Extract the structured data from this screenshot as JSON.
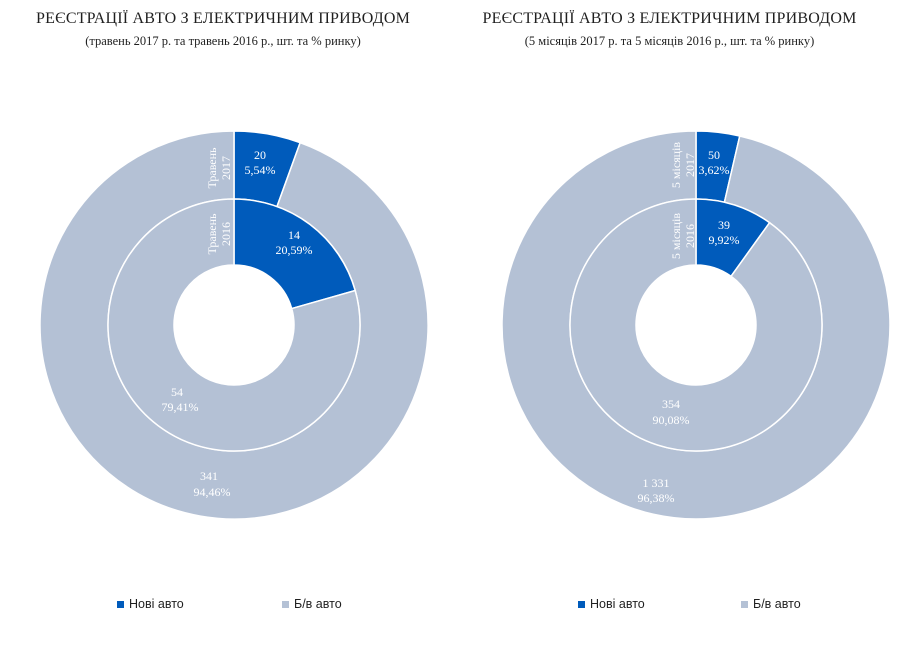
{
  "colors": {
    "new": "#005bbb",
    "used": "#b4c1d5",
    "background": "#ffffff"
  },
  "legend": {
    "new_label": "Нові авто",
    "used_label": "Б/в авто"
  },
  "chart_data": [
    {
      "type": "doughnut",
      "title": "РЕЄСТРАЦІЇ АВТО З ЕЛЕКТРИЧНИМ  ПРИВОДОМ",
      "subtitle": "(травень 2017 р. та травень  2016 р., шт. та % ринку)",
      "categories": [
        "Нові авто",
        "Б/в авто"
      ],
      "rings": [
        {
          "name": "Травень 2017",
          "values": [
            20,
            341
          ],
          "labels": [
            [
              "20",
              "5,54%"
            ],
            [
              "341",
              "94,46%"
            ]
          ]
        },
        {
          "name": "Травень 2016",
          "values": [
            14,
            54
          ],
          "labels": [
            [
              "14",
              "20,59%"
            ],
            [
              "54",
              "79,41%"
            ]
          ]
        }
      ]
    },
    {
      "type": "doughnut",
      "title": "РЕЄСТРАЦІЇ АВТО З ЕЛЕКТРИЧНИМ  ПРИВОДОМ",
      "subtitle": "(5 місяців 2017 р. та 5 місяців 2016 р., шт. та % ринку)",
      "categories": [
        "Нові авто",
        "Б/в авто"
      ],
      "rings": [
        {
          "name": "5 місяців 2017",
          "values": [
            50,
            1331
          ],
          "labels": [
            [
              "50",
              "3,62%"
            ],
            [
              "1 331",
              "96,38%"
            ]
          ]
        },
        {
          "name": "5 місяців 2016",
          "values": [
            39,
            354
          ],
          "labels": [
            [
              "39",
              "9,92%"
            ],
            [
              "354",
              "90,08%"
            ]
          ]
        }
      ]
    }
  ]
}
